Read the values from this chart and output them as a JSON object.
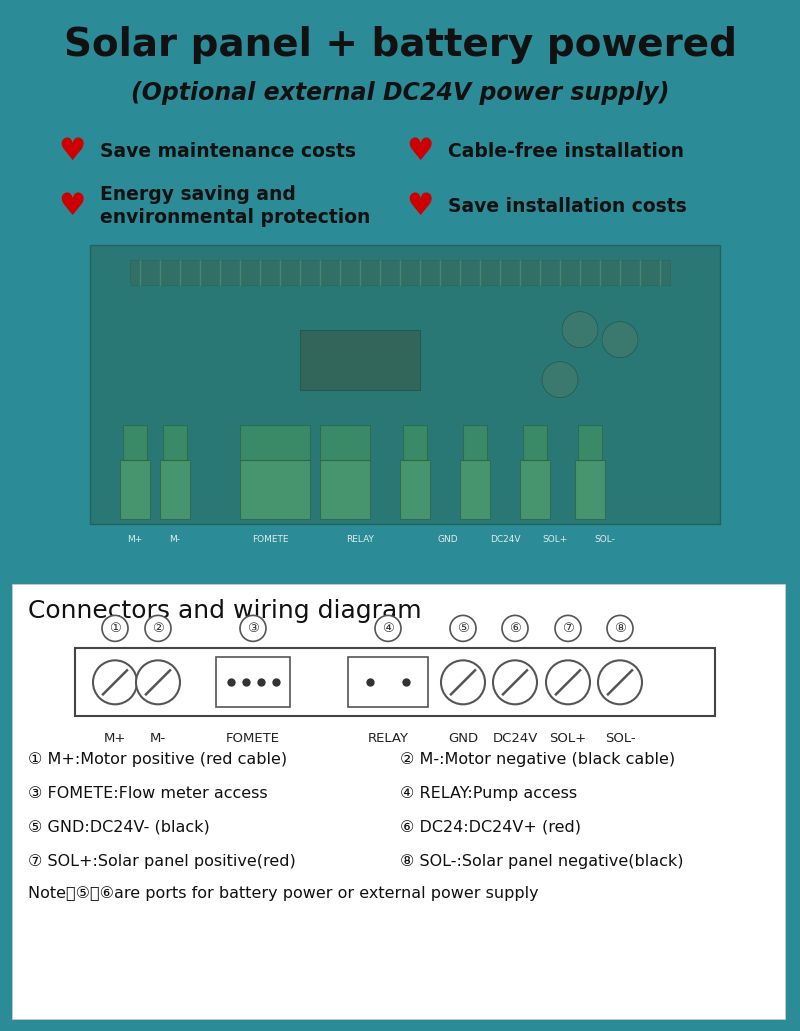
{
  "bg_color": "#2B8B96",
  "white_color": "#ffffff",
  "title_color": "#111111",
  "heart_color": "#cc0000",
  "title_line1": "Solar panel + battery powered",
  "title_line2": "(Optional external DC24V power supply)",
  "features_left": [
    "Save maintenance costs",
    "Energy saving and",
    "environmental protection"
  ],
  "features_right": [
    "Cable-free installation",
    "Save installation costs"
  ],
  "connector_title": "Connectors and wiring diagram",
  "connector_labels": [
    "M+",
    "M-",
    "FOMETE",
    "RELAY",
    "GND",
    "DC24V",
    "SOL+",
    "SOL-"
  ],
  "conn_numbers": [
    "①",
    "②",
    "③",
    "④",
    "⑤",
    "⑥",
    "⑦",
    "⑧"
  ],
  "desc_col1": [
    "① M+:Motor positive (red cable)",
    "③ FOMETE:Flow meter access",
    "⑤ GND:DC24V- (black)",
    "⑦ SOL+:Solar panel positive(red)",
    "Note：⑤、⑥are ports for battery power or external power supply"
  ],
  "desc_col2": [
    "② M-:Motor negative (black cable)",
    "④ RELAY:Pump access",
    "⑥ DC24:DC24V+ (red)",
    "⑧ SOL-:Solar panel negative(black)",
    ""
  ]
}
